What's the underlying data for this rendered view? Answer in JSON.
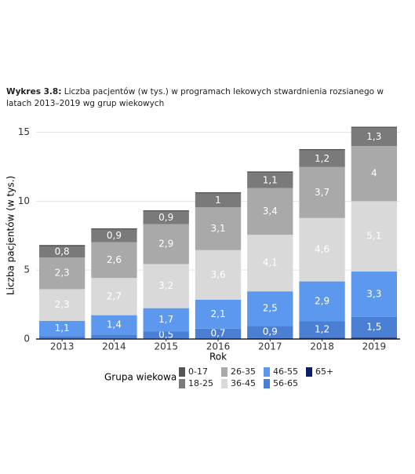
{
  "chart_data": {
    "type": "bar",
    "stacked": true,
    "title_prefix": "Wykres 3.8:",
    "title": "Liczba pacjentów (w tys.) w programach lekowych stwardnienia rozsianego w latach 2013–2019 wg grup wiekowych",
    "x_label": "Rok",
    "y_label": "Liczba pacjentów (w tys.)",
    "legend_title": "Grupa wiekowa",
    "categories": [
      "2013",
      "2014",
      "2015",
      "2016",
      "2017",
      "2018",
      "2019"
    ],
    "series": [
      {
        "name": "0-17",
        "color": "#555555",
        "values": [
          0.1,
          0.1,
          0.1,
          0.1,
          0.1,
          0.1,
          0.1
        ],
        "value_labels": [
          null,
          null,
          null,
          null,
          null,
          null,
          null
        ]
      },
      {
        "name": "18-25",
        "color": "#7a7a7a",
        "values": [
          0.8,
          0.9,
          0.9,
          1.0,
          1.1,
          1.2,
          1.3
        ],
        "value_labels": [
          "0,8",
          "0,9",
          "0,9",
          "1",
          "1,1",
          "1,2",
          "1,3"
        ]
      },
      {
        "name": "26-35",
        "color": "#a9a9a9",
        "values": [
          2.3,
          2.6,
          2.9,
          3.1,
          3.4,
          3.7,
          4.0
        ],
        "value_labels": [
          "2,3",
          "2,6",
          "2,9",
          "3,1",
          "3,4",
          "3,7",
          "4"
        ]
      },
      {
        "name": "36-45",
        "color": "#d9d9d9",
        "values": [
          2.3,
          2.7,
          3.2,
          3.6,
          4.1,
          4.6,
          5.1
        ],
        "value_labels": [
          "2,3",
          "2,7",
          "3,2",
          "3,6",
          "4,1",
          "4,6",
          "5,1"
        ]
      },
      {
        "name": "46-55",
        "color": "#5b98ee",
        "values": [
          1.1,
          1.4,
          1.7,
          2.1,
          2.5,
          2.9,
          3.3
        ],
        "value_labels": [
          "1,1",
          "1,4",
          "1,7",
          "2,1",
          "2,5",
          "2,9",
          "3,3"
        ]
      },
      {
        "name": "56-65",
        "color": "#4a7fd4",
        "values": [
          0.2,
          0.3,
          0.5,
          0.7,
          0.9,
          1.2,
          1.5
        ],
        "value_labels": [
          null,
          null,
          "0,5",
          "0,7",
          "0,9",
          "1,2",
          "1,5"
        ]
      },
      {
        "name": "65+",
        "color": "#0c1f66",
        "values": [
          0.02,
          0.03,
          0.04,
          0.05,
          0.06,
          0.08,
          0.1
        ],
        "value_labels": [
          null,
          null,
          null,
          null,
          null,
          null,
          null
        ]
      }
    ],
    "ylim": [
      0,
      15.6
    ],
    "yticks": [
      0,
      5,
      10,
      15
    ],
    "grid": true
  }
}
